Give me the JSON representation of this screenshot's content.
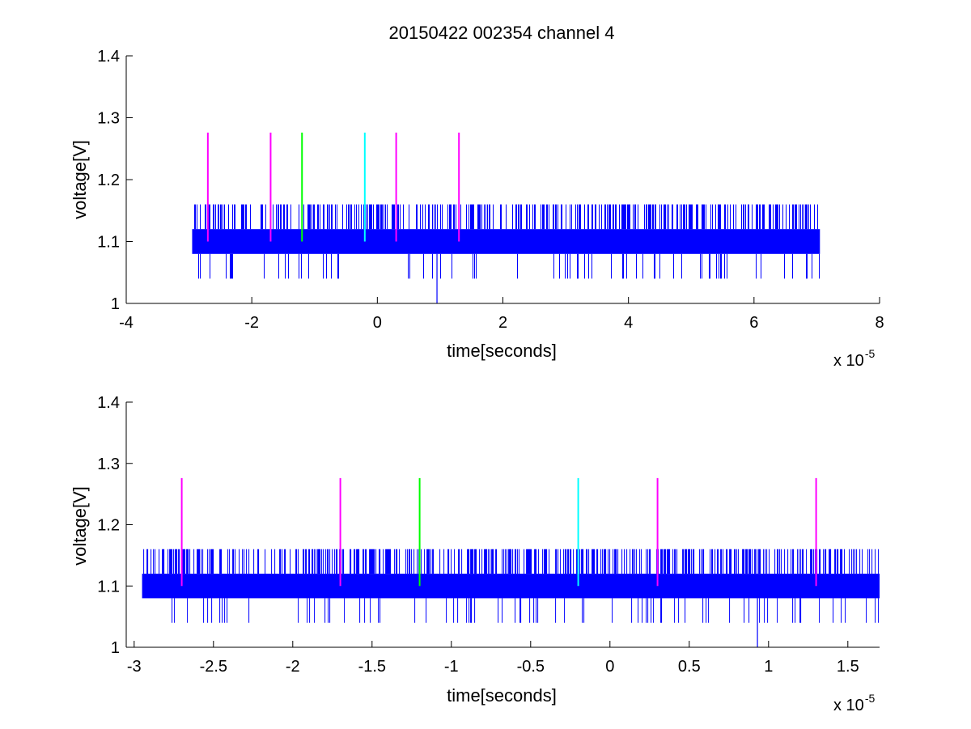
{
  "title": "20150422 002354 channel 4",
  "colors": {
    "signal": "#0000ff",
    "magenta": "#ff00ff",
    "green": "#00ff00",
    "cyan": "#00ffff",
    "axes": "#000000"
  },
  "chart_data": [
    {
      "type": "line",
      "title": "20150422 002354 channel 4",
      "xlabel": "time[seconds]",
      "ylabel": "voltage[V]",
      "x_exponent_label": "x 10",
      "x_exponent": "-5",
      "xlim": [
        -4,
        8
      ],
      "ylim": [
        1,
        1.4
      ],
      "xticks": [
        -4,
        -2,
        0,
        2,
        4,
        6,
        8
      ],
      "xtick_labels": [
        "-4",
        "-2",
        "0",
        "2",
        "4",
        "6",
        "8"
      ],
      "yticks": [
        1,
        1.1,
        1.2,
        1.3,
        1.4
      ],
      "ytick_labels": [
        "1",
        "1.1",
        "1.2",
        "1.3",
        "1.4"
      ],
      "grid": false,
      "series": [
        {
          "color": "#0000ff",
          "x_range": [
            -2.95,
            7.05
          ],
          "band": [
            1.08,
            1.12
          ],
          "spikes_high": 1.16,
          "spikes_low": 1.04,
          "min_value": 1.0,
          "min_at": 0.95
        }
      ],
      "markers": [
        {
          "x": -2.7,
          "y_range": [
            1.1,
            1.276
          ],
          "color": "#ff00ff"
        },
        {
          "x": -1.7,
          "y_range": [
            1.1,
            1.276
          ],
          "color": "#ff00ff"
        },
        {
          "x": -1.2,
          "y_range": [
            1.1,
            1.276
          ],
          "color": "#00ff00"
        },
        {
          "x": -0.2,
          "y_range": [
            1.1,
            1.276
          ],
          "color": "#00ffff"
        },
        {
          "x": 0.3,
          "y_range": [
            1.1,
            1.276
          ],
          "color": "#ff00ff"
        },
        {
          "x": 1.3,
          "y_range": [
            1.1,
            1.276
          ],
          "color": "#ff00ff"
        }
      ]
    },
    {
      "type": "line",
      "title": "",
      "xlabel": "time[seconds]",
      "ylabel": "voltage[V]",
      "x_exponent_label": "x 10",
      "x_exponent": "-5",
      "xlim": [
        -3.05,
        1.7
      ],
      "ylim": [
        1,
        1.4
      ],
      "xticks": [
        -3,
        -2.5,
        -2,
        -1.5,
        -1,
        -0.5,
        0,
        0.5,
        1,
        1.5
      ],
      "xtick_labels": [
        "-3",
        "-2.5",
        "-2",
        "-1.5",
        "-1",
        "-0.5",
        "0",
        "0.5",
        "1",
        "1.5"
      ],
      "yticks": [
        1,
        1.1,
        1.2,
        1.3,
        1.4
      ],
      "ytick_labels": [
        "1",
        "1.1",
        "1.2",
        "1.3",
        "1.4"
      ],
      "grid": false,
      "series": [
        {
          "color": "#0000ff",
          "x_range": [
            -2.95,
            1.7
          ],
          "band": [
            1.08,
            1.12
          ],
          "spikes_high": 1.16,
          "spikes_low": 1.04,
          "min_value": 1.0,
          "min_at": 0.93
        }
      ],
      "markers": [
        {
          "x": -2.7,
          "y_range": [
            1.1,
            1.276
          ],
          "color": "#ff00ff"
        },
        {
          "x": -1.7,
          "y_range": [
            1.1,
            1.276
          ],
          "color": "#ff00ff"
        },
        {
          "x": -1.2,
          "y_range": [
            1.1,
            1.276
          ],
          "color": "#00ff00"
        },
        {
          "x": -0.2,
          "y_range": [
            1.1,
            1.276
          ],
          "color": "#00ffff"
        },
        {
          "x": 0.3,
          "y_range": [
            1.1,
            1.276
          ],
          "color": "#ff00ff"
        },
        {
          "x": 1.3,
          "y_range": [
            1.1,
            1.276
          ],
          "color": "#ff00ff"
        }
      ]
    }
  ]
}
